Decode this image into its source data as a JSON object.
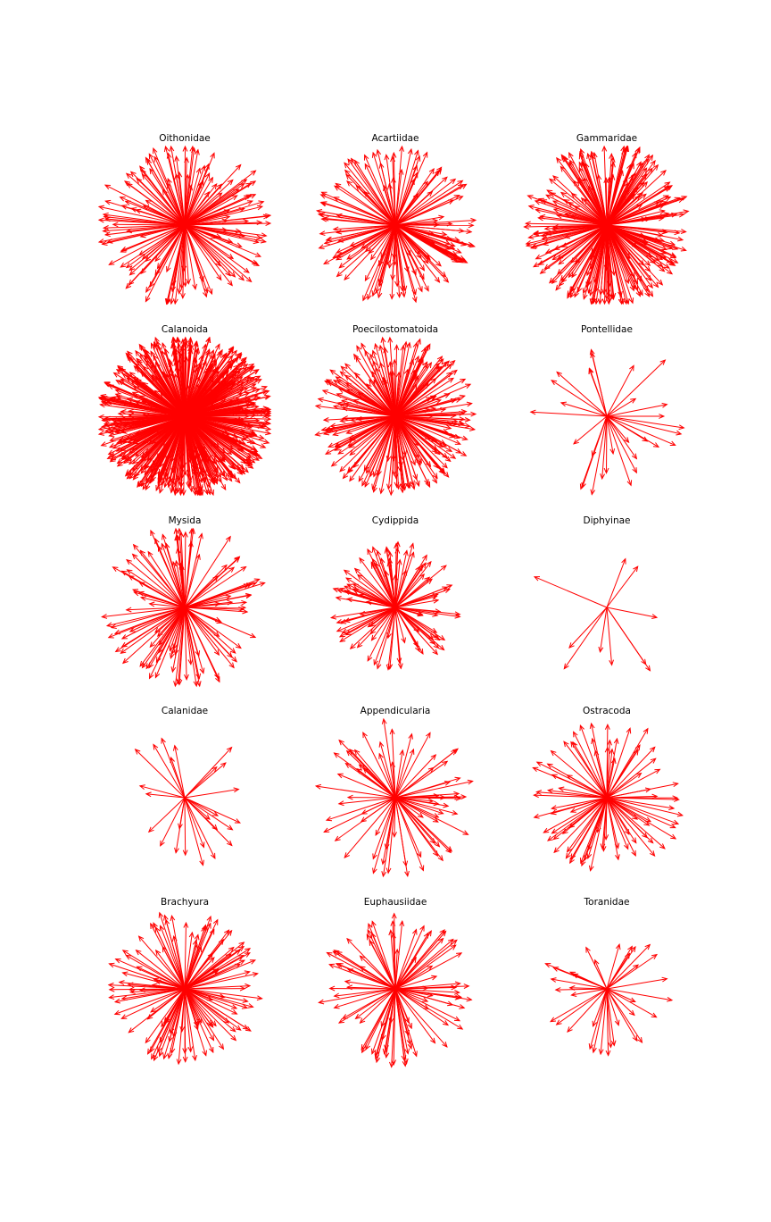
{
  "figure": {
    "arrow_color": "#ff0000",
    "background": "#ffffff"
  },
  "chart_data": [
    {
      "type": "quiver",
      "title": "Oithonidae",
      "approx_arrow_count": 150,
      "grid": false,
      "axes_visible": false
    },
    {
      "type": "quiver",
      "title": "Acartiidae",
      "approx_arrow_count": 150,
      "grid": false,
      "axes_visible": false
    },
    {
      "type": "quiver",
      "title": "Gammaridae",
      "approx_arrow_count": 250,
      "grid": false,
      "axes_visible": false
    },
    {
      "type": "quiver",
      "title": "Calanoida",
      "approx_arrow_count": 600,
      "grid": false,
      "axes_visible": false
    },
    {
      "type": "quiver",
      "title": "Poecilostomatoida",
      "approx_arrow_count": 220,
      "grid": false,
      "axes_visible": false
    },
    {
      "type": "quiver",
      "title": "Pontellidae",
      "approx_arrow_count": 30,
      "grid": false,
      "axes_visible": false
    },
    {
      "type": "quiver",
      "title": "Mysida",
      "approx_arrow_count": 110,
      "grid": false,
      "axes_visible": false
    },
    {
      "type": "quiver",
      "title": "Cydippida",
      "approx_arrow_count": 100,
      "grid": false,
      "axes_visible": false
    },
    {
      "type": "quiver",
      "title": "Diphyinae",
      "approx_arrow_count": 10,
      "grid": false,
      "axes_visible": false
    },
    {
      "type": "quiver",
      "title": "Calanidae",
      "approx_arrow_count": 25,
      "grid": false,
      "axes_visible": false
    },
    {
      "type": "quiver",
      "title": "Appendicularia",
      "approx_arrow_count": 70,
      "grid": false,
      "axes_visible": false
    },
    {
      "type": "quiver",
      "title": "Ostracoda",
      "approx_arrow_count": 80,
      "grid": false,
      "axes_visible": false
    },
    {
      "type": "quiver",
      "title": "Brachyura",
      "approx_arrow_count": 120,
      "grid": false,
      "axes_visible": false
    },
    {
      "type": "quiver",
      "title": "Euphausiidae",
      "approx_arrow_count": 90,
      "grid": false,
      "axes_visible": false
    },
    {
      "type": "quiver",
      "title": "Toranidae",
      "approx_arrow_count": 35,
      "grid": false,
      "axes_visible": false
    }
  ]
}
